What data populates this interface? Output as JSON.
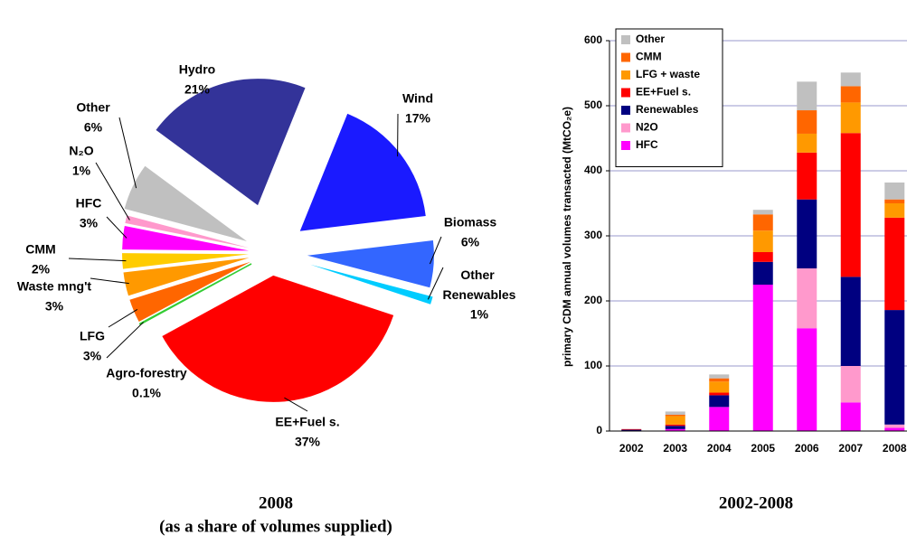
{
  "chart_data": [
    {
      "type": "pie",
      "title": "2008",
      "subtitle": "(as a share of volumes supplied)",
      "categories": [
        "Wind",
        "Biomass",
        "Other Renewables",
        "EE+Fuel s.",
        "Agro-forestry",
        "LFG",
        "Waste mng't",
        "CMM",
        "HFC",
        "N₂O",
        "Other",
        "Hydro"
      ],
      "values": [
        17,
        6,
        1,
        37,
        0.1,
        3,
        3,
        2,
        3,
        1,
        6,
        21
      ],
      "value_labels": [
        "17%",
        "6%",
        "1%",
        "37%",
        "0.1%",
        "3%",
        "3%",
        "2%",
        "3%",
        "1%",
        "6%",
        "21%"
      ],
      "colors": [
        "#1a1aff",
        "#3366ff",
        "#00ccff",
        "#ff0000",
        "#33cc33",
        "#ff6600",
        "#ff9900",
        "#ffcc00",
        "#ff00ff",
        "#ff99cc",
        "#c0c0c0",
        "#333399"
      ]
    },
    {
      "type": "bar",
      "stacked": true,
      "title": "2002-2008",
      "y_label": "primary CDM annual volumes transacted (MtCO₂e)",
      "categories": [
        "2002",
        "2003",
        "2004",
        "2005",
        "2006",
        "2007",
        "2008"
      ],
      "ylim": [
        0,
        600
      ],
      "yticks": [
        0,
        100,
        200,
        300,
        400,
        500,
        600
      ],
      "grid": true,
      "series": [
        {
          "name": "HFC",
          "color": "#ff00ff",
          "values": [
            0,
            3,
            37,
            225,
            158,
            44,
            5
          ]
        },
        {
          "name": "N2O",
          "color": "#ff99cc",
          "values": [
            0,
            0,
            0,
            0,
            92,
            56,
            5
          ]
        },
        {
          "name": "Renewables",
          "color": "#000080",
          "values": [
            2,
            5,
            18,
            35,
            106,
            137,
            176
          ]
        },
        {
          "name": "EE+Fuel s.",
          "color": "#ff0000",
          "values": [
            1,
            2,
            4,
            15,
            72,
            221,
            142
          ]
        },
        {
          "name": "LFG + waste",
          "color": "#ff9900",
          "values": [
            0,
            13,
            17,
            33,
            29,
            47,
            22
          ]
        },
        {
          "name": "CMM",
          "color": "#ff6600",
          "values": [
            0,
            2,
            5,
            25,
            36,
            25,
            6
          ]
        },
        {
          "name": "Other",
          "color": "#c0c0c0",
          "values": [
            0,
            5,
            6,
            7,
            44,
            21,
            26
          ]
        }
      ]
    }
  ]
}
